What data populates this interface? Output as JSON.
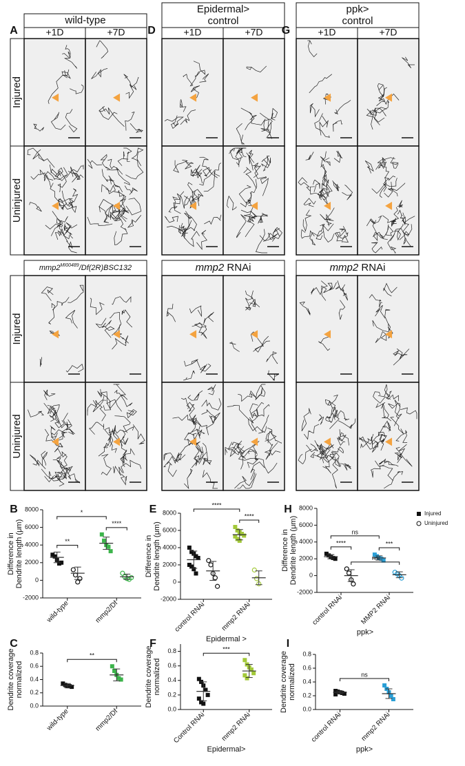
{
  "panel_letters": [
    "A",
    "D",
    "G",
    "B",
    "E",
    "H",
    "C",
    "F",
    "I"
  ],
  "timepoints": [
    "+1D",
    "+7D"
  ],
  "rows": [
    "Injured",
    "Uninjured"
  ],
  "image_columns": [
    {
      "header": [
        "wild-type"
      ],
      "lower_header": [
        {
          "text": "mmp2",
          "italic": true
        },
        {
          "text": "MI00489",
          "italic": true,
          "sup": true
        },
        {
          "text": "/Df(2R)BSC132",
          "italic": true
        }
      ]
    },
    {
      "header": [
        "Epidermal>",
        "control"
      ],
      "lower_header": [
        {
          "text": "mmp2",
          "italic": true
        },
        {
          "text": " RNAi"
        }
      ]
    },
    {
      "header": [
        "ppk>",
        "control"
      ],
      "lower_header": [
        {
          "text": "mmp2",
          "italic": true
        },
        {
          "text": " RNAi"
        }
      ]
    }
  ],
  "chart_data": [
    {
      "type": "dot",
      "ylabel": [
        "Difference in",
        "Dendrite length (μm)"
      ],
      "categories": [
        "wild-type",
        "mmp2/Df"
      ],
      "ylim": [
        -2000,
        8000
      ],
      "yticks": [
        -2000,
        0,
        2000,
        4000,
        6000,
        8000
      ],
      "series": [
        {
          "marker": "filled",
          "colors": [
            "#111111",
            "#3cb44b"
          ],
          "points": [
            [
              2900,
              2700,
              2300,
              1900,
              2000
            ],
            [
              5200,
              4500,
              4000,
              3800,
              3300
            ]
          ],
          "mean": [
            2600,
            4200
          ],
          "sd": [
            600,
            700
          ]
        },
        {
          "marker": "open",
          "colors": [
            "#111111",
            "#3cb44b"
          ],
          "points": [
            [
              1200,
              600,
              -200,
              200
            ],
            [
              800,
              400,
              200,
              100,
              300
            ]
          ],
          "mean": [
            800,
            400
          ],
          "sd": [
            700,
            300
          ]
        }
      ],
      "brackets": [
        {
          "text": "**",
          "a": [
            0,
            0
          ],
          "b": [
            0,
            1
          ]
        },
        {
          "text": "****",
          "a": [
            1,
            0
          ],
          "b": [
            1,
            1
          ]
        },
        {
          "text": "*",
          "a": [
            0,
            0
          ],
          "b": [
            1,
            0
          ]
        }
      ]
    },
    {
      "type": "dot",
      "ylabel": [
        "Difference in",
        "Dendrite length (μm)"
      ],
      "categories": [
        "control RNAi",
        "mmp2 RNAi"
      ],
      "xlabel": "Epidermal >",
      "ylim": [
        -2000,
        8000
      ],
      "yticks": [
        -2000,
        0,
        2000,
        4000,
        6000,
        8000
      ],
      "series": [
        {
          "marker": "filled",
          "colors": [
            "#111111",
            "#a3c93a"
          ],
          "points": [
            [
              4000,
              3500,
              3300,
              3000,
              2800,
              2000,
              1800,
              1500,
              1000
            ],
            [
              6400,
              6000,
              5800,
              5600,
              5400,
              5300,
              5000,
              4800
            ]
          ],
          "mean": [
            2600,
            5500
          ],
          "sd": [
            1000,
            600
          ]
        },
        {
          "marker": "open",
          "colors": [
            "#111111",
            "#a3c93a"
          ],
          "points": [
            [
              2500,
              2000,
              1000,
              500,
              -500
            ],
            [
              1400,
              400,
              -200
            ]
          ],
          "mean": [
            1300,
            500
          ],
          "sd": [
            1100,
            800
          ]
        }
      ],
      "brackets": [
        {
          "text": "****",
          "a": [
            1,
            0
          ],
          "b": [
            1,
            1
          ]
        },
        {
          "text": "****",
          "a": [
            0,
            0
          ],
          "b": [
            1,
            0
          ]
        }
      ]
    },
    {
      "type": "dot",
      "ylabel": [
        "Difference in",
        "Dendrite length (μm)"
      ],
      "categories": [
        "control RNAi",
        "MMP2 RNAi"
      ],
      "xlabel": "ppk>",
      "legend": "upper right",
      "ylim": [
        -2000,
        8000
      ],
      "yticks": [
        -2000,
        0,
        2000,
        4000,
        6000,
        8000
      ],
      "series": [
        {
          "name": "Injured",
          "marker": "filled",
          "colors": [
            "#111111",
            "#2a9fd6"
          ],
          "points": [
            [
              2600,
              2400,
              2200,
              2100,
              2000
            ],
            [
              2500,
              2300,
              2100,
              2000,
              1800
            ]
          ],
          "mean": [
            2250,
            2100
          ],
          "sd": [
            250,
            250
          ]
        },
        {
          "name": "Uninjured",
          "marker": "open",
          "colors": [
            "#111111",
            "#2a9fd6"
          ],
          "points": [
            [
              800,
              300,
              -500,
              -1000
            ],
            [
              400,
              200,
              0,
              -300
            ]
          ],
          "mean": [
            0,
            100
          ],
          "sd": [
            700,
            350
          ]
        }
      ],
      "brackets": [
        {
          "text": "****",
          "a": [
            0,
            0
          ],
          "b": [
            0,
            1
          ]
        },
        {
          "text": "***",
          "a": [
            1,
            0
          ],
          "b": [
            1,
            1
          ]
        },
        {
          "text": "ns",
          "a": [
            0,
            0
          ],
          "b": [
            1,
            0
          ]
        },
        {
          "text": "ns",
          "a": [
            0,
            1
          ],
          "b": [
            1,
            1
          ]
        }
      ]
    },
    {
      "type": "dot",
      "ylabel": [
        "Dendrite coverage",
        "normalized"
      ],
      "categories": [
        "wild-type",
        "mmp2/Df"
      ],
      "ylim": [
        0,
        0.8
      ],
      "yticks": [
        {
          "value": 0,
          "label": "0.0"
        },
        0.2,
        0.4,
        0.6,
        0.8
      ],
      "series": [
        {
          "marker": "filled",
          "colors": [
            "#111111",
            "#3cb44b"
          ],
          "points": [
            [
              0.34,
              0.32,
              0.3,
              0.3,
              0.29
            ],
            [
              0.6,
              0.53,
              0.47,
              0.42,
              0.4
            ]
          ],
          "mean": [
            0.31,
            0.47
          ],
          "sd": [
            0.03,
            0.09
          ]
        }
      ],
      "brackets": [
        {
          "text": "**",
          "a": [
            0,
            0
          ],
          "b": [
            1,
            0
          ]
        }
      ]
    },
    {
      "type": "dot",
      "ylabel": [
        "Dendrite coverage",
        "normalized"
      ],
      "categories": [
        "Control RNAi",
        "mmp2 RNAi"
      ],
      "xlabel": "Epidermal>",
      "ylim": [
        0,
        0.9
      ],
      "yticks": [
        {
          "value": 0,
          "label": "0.0"
        },
        0.2,
        0.4,
        0.6,
        0.8
      ],
      "series": [
        {
          "marker": "filled",
          "colors": [
            "#111111",
            "#a3c93a"
          ],
          "points": [
            [
              0.42,
              0.38,
              0.33,
              0.27,
              0.2,
              0.15,
              0.1,
              0.08
            ],
            [
              0.68,
              0.62,
              0.58,
              0.55,
              0.5,
              0.47,
              0.43
            ]
          ],
          "mean": [
            0.25,
            0.53
          ],
          "sd": [
            0.13,
            0.09
          ]
        }
      ],
      "brackets": [
        {
          "text": "***",
          "a": [
            0,
            0
          ],
          "b": [
            1,
            0
          ]
        }
      ]
    },
    {
      "type": "dot",
      "ylabel": [
        "Dendrite coverage",
        "normalized"
      ],
      "categories": [
        "control RNAi",
        "mmp2 RNAi"
      ],
      "xlabel": "ppk>",
      "ylim": [
        0,
        0.8
      ],
      "yticks": [
        {
          "value": 0,
          "label": "0.0"
        },
        0.2,
        0.4,
        0.6,
        0.8
      ],
      "series": [
        {
          "marker": "filled",
          "colors": [
            "#111111",
            "#2a9fd6"
          ],
          "points": [
            [
              0.27,
              0.26,
              0.25,
              0.24,
              0.23,
              0.22
            ],
            [
              0.35,
              0.3,
              0.25,
              0.2,
              0.15
            ]
          ],
          "mean": [
            0.25,
            0.23
          ],
          "sd": [
            0.02,
            0.07
          ]
        }
      ],
      "brackets": [
        {
          "text": "ns",
          "a": [
            0,
            0
          ],
          "b": [
            1,
            0
          ]
        }
      ]
    }
  ]
}
